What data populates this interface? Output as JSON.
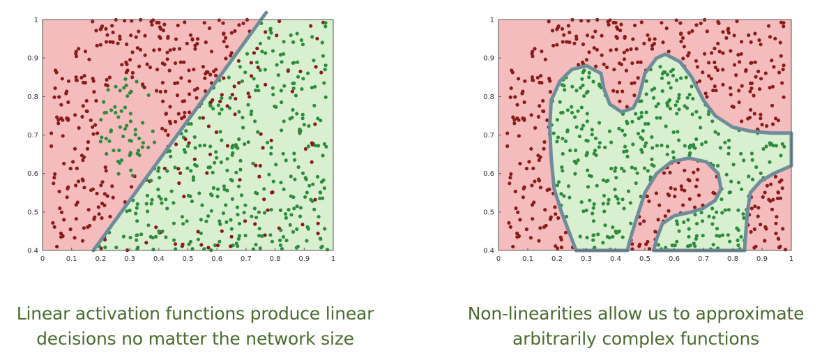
{
  "colors": {
    "red_region": "#f4bcbc",
    "green_region": "#d8f0d0",
    "red_points": "#8b1a1a",
    "green_points": "#2e8b3e",
    "boundary": "#6f8d99",
    "axis_text": "#333333",
    "caption_text": "#4b6b2f"
  },
  "captions": {
    "left": [
      "Linear activation functions produce linear",
      "decisions no matter the network size"
    ],
    "right": [
      "Non-linearities allow us to approximate",
      "arbitrarily complex functions"
    ]
  },
  "chart_data": [
    {
      "type": "scatter",
      "title": "",
      "xlabel": "",
      "ylabel": "",
      "xlim": [
        0,
        1
      ],
      "ylim": [
        0.4,
        1
      ],
      "x_ticks": [
        "0",
        "0.1",
        "0.2",
        "0.3",
        "0.4",
        "0.5",
        "0.6",
        "0.7",
        "0.8",
        "0.9",
        "1"
      ],
      "y_ticks": [
        "0.4",
        "0.5",
        "0.6",
        "0.7",
        "0.8",
        "0.9",
        "1"
      ],
      "grid": false,
      "decision_boundary": "linear",
      "boundary_line": [
        [
          0.175,
          0.4
        ],
        [
          0.755,
          1.0
        ]
      ],
      "series": [
        {
          "class": "red",
          "approx_count": 330
        },
        {
          "class": "green",
          "approx_count": 430
        }
      ]
    },
    {
      "type": "scatter",
      "title": "",
      "xlabel": "",
      "ylabel": "",
      "xlim": [
        0,
        1
      ],
      "ylim": [
        0.4,
        1
      ],
      "x_ticks": [
        "0",
        "0.1",
        "0.2",
        "0.3",
        "0.4",
        "0.5",
        "0.6",
        "0.7",
        "0.8",
        "0.9",
        "1"
      ],
      "y_ticks": [
        "0.4",
        "0.5",
        "0.6",
        "0.7",
        "0.8",
        "0.9",
        "1"
      ],
      "grid": false,
      "decision_boundary": "non-linear",
      "boundary_polygon": [
        [
          0.265,
          0.4
        ],
        [
          0.25,
          0.43
        ],
        [
          0.215,
          0.5
        ],
        [
          0.19,
          0.56
        ],
        [
          0.18,
          0.64
        ],
        [
          0.175,
          0.72
        ],
        [
          0.18,
          0.79
        ],
        [
          0.21,
          0.84
        ],
        [
          0.25,
          0.87
        ],
        [
          0.3,
          0.88
        ],
        [
          0.35,
          0.86
        ],
        [
          0.36,
          0.82
        ],
        [
          0.38,
          0.78
        ],
        [
          0.42,
          0.76
        ],
        [
          0.46,
          0.77
        ],
        [
          0.48,
          0.8
        ],
        [
          0.5,
          0.86
        ],
        [
          0.54,
          0.9
        ],
        [
          0.57,
          0.91
        ],
        [
          0.62,
          0.89
        ],
        [
          0.66,
          0.85
        ],
        [
          0.7,
          0.79
        ],
        [
          0.74,
          0.75
        ],
        [
          0.8,
          0.72
        ],
        [
          0.86,
          0.71
        ],
        [
          0.93,
          0.705
        ],
        [
          1.0,
          0.705
        ],
        [
          1.0,
          0.62
        ],
        [
          0.94,
          0.6
        ],
        [
          0.895,
          0.58
        ],
        [
          0.86,
          0.55
        ],
        [
          0.85,
          0.5
        ],
        [
          0.845,
          0.45
        ],
        [
          0.84,
          0.4
        ],
        [
          0.66,
          0.4
        ],
        [
          0.595,
          0.4
        ],
        [
          0.53,
          0.4
        ],
        [
          0.54,
          0.43
        ],
        [
          0.56,
          0.47
        ],
        [
          0.6,
          0.49
        ],
        [
          0.66,
          0.5
        ],
        [
          0.7,
          0.51
        ],
        [
          0.74,
          0.53
        ],
        [
          0.76,
          0.56
        ],
        [
          0.75,
          0.6
        ],
        [
          0.71,
          0.63
        ],
        [
          0.65,
          0.64
        ],
        [
          0.59,
          0.63
        ],
        [
          0.54,
          0.6
        ],
        [
          0.5,
          0.55
        ],
        [
          0.47,
          0.48
        ],
        [
          0.45,
          0.43
        ],
        [
          0.44,
          0.4
        ]
      ],
      "series": [
        {
          "class": "red",
          "approx_count": 330
        },
        {
          "class": "green",
          "approx_count": 430
        }
      ]
    }
  ]
}
